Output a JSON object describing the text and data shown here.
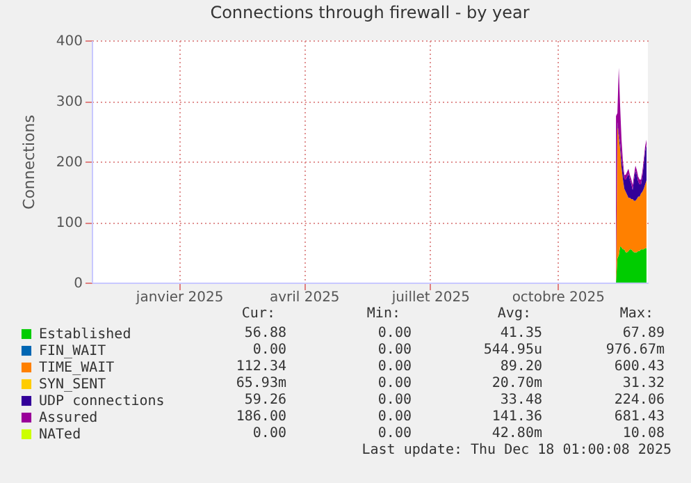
{
  "chart_data": {
    "type": "area",
    "stacked": true,
    "title": "Connections through firewall - by year",
    "ylabel": "Connections",
    "x": [
      "2025-11-26",
      "2025-11-27",
      "2025-11-28",
      "2025-11-29",
      "2025-11-30",
      "2025-12-01",
      "2025-12-02",
      "2025-12-03",
      "2025-12-04",
      "2025-12-05",
      "2025-12-06",
      "2025-12-07",
      "2025-12-08",
      "2025-12-09",
      "2025-12-10",
      "2025-12-11",
      "2025-12-12",
      "2025-12-13",
      "2025-12-14",
      "2025-12-15",
      "2025-12-16",
      "2025-12-17",
      "2025-12-18"
    ],
    "xlim": [
      "2024-11-13",
      "2025-12-19"
    ],
    "xticks": [
      {
        "value": "2025-01-15",
        "label": "janvier 2025"
      },
      {
        "value": "2025-04-15",
        "label": "avril 2025"
      },
      {
        "value": "2025-07-15",
        "label": "juillet 2025"
      },
      {
        "value": "2025-10-15",
        "label": "octobre 2025"
      }
    ],
    "ylim": [
      0,
      400
    ],
    "yticks": [
      0,
      100,
      200,
      300,
      400
    ],
    "grid": true,
    "legend": "bottom left",
    "series": [
      {
        "name": "Established",
        "color": "#00cc00",
        "values": [
          0,
          40,
          45,
          60,
          58,
          55,
          55,
          50,
          50,
          52,
          55,
          55,
          52,
          50,
          50,
          50,
          52,
          52,
          55,
          55,
          55,
          57,
          57
        ]
      },
      {
        "name": "FIN_WAIT",
        "color": "#0066b3",
        "values": [
          null,
          null,
          null,
          null,
          null,
          null,
          null,
          null,
          null,
          null,
          null,
          null,
          null,
          null,
          null,
          null,
          null,
          null,
          null,
          null,
          null,
          null,
          null
        ]
      },
      {
        "name": "TIME_WAIT",
        "color": "#ff8000",
        "values": [
          0,
          220,
          195,
          160,
          132,
          115,
          100,
          100,
          95,
          88,
          85,
          83,
          86,
          85,
          85,
          88,
          90,
          90,
          92,
          95,
          100,
          105,
          112
        ]
      },
      {
        "name": "SYN_SENT",
        "color": "#ffcc00",
        "values": [
          null,
          null,
          null,
          null,
          null,
          null,
          null,
          null,
          null,
          null,
          null,
          null,
          null,
          null,
          null,
          null,
          null,
          null,
          null,
          null,
          null,
          null,
          null
        ]
      },
      {
        "name": "UDP connections",
        "color": "#330099",
        "values": [
          0,
          5,
          5,
          10,
          15,
          20,
          15,
          20,
          30,
          40,
          30,
          25,
          15,
          35,
          50,
          40,
          25,
          20,
          15,
          25,
          40,
          55,
          59
        ]
      },
      {
        "name": "Assured",
        "color": "#990099",
        "values": [
          275,
          15,
          110,
          60,
          30,
          10,
          8,
          8,
          8,
          8,
          8,
          8,
          8,
          8,
          8,
          8,
          8,
          8,
          8,
          8,
          8,
          8,
          8
        ]
      },
      {
        "name": "NATed",
        "color": "#ccff00",
        "values": [
          null,
          null,
          null,
          null,
          null,
          null,
          null,
          null,
          null,
          null,
          null,
          null,
          null,
          null,
          null,
          null,
          null,
          null,
          null,
          null,
          null,
          null,
          null
        ]
      }
    ],
    "annotations": [
      "Cur:",
      "Min:",
      "Avg:",
      "Max:",
      "56.88",
      "0.00",
      "41.35",
      "67.89",
      "0.00",
      "0.00",
      "544.95u",
      "976.67m",
      "112.34",
      "0.00",
      "89.20",
      "600.43",
      "65.93m",
      "0.00",
      "20.70m",
      "31.32",
      "59.26",
      "0.00",
      "33.48",
      "224.06",
      "186.00",
      "0.00",
      "141.36",
      "681.43",
      "0.00",
      "0.00",
      "42.80m",
      "10.08",
      "Last update: Thu Dec 18 01:00:08 2025"
    ]
  }
}
